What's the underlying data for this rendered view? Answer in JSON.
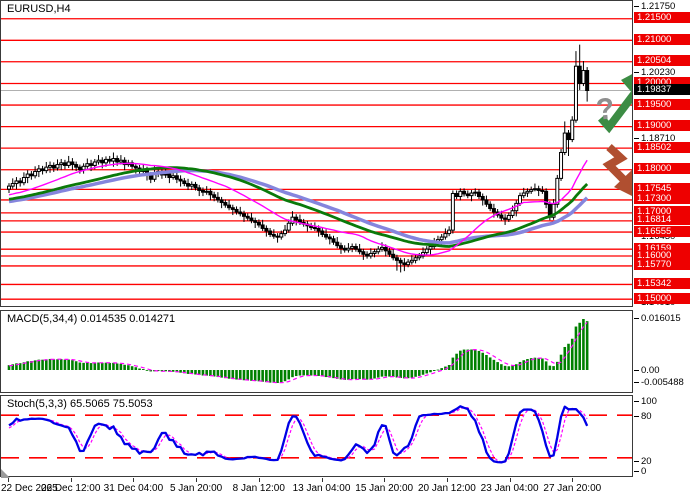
{
  "window": {
    "symbol_label": "EURUSD,H4"
  },
  "annotation": {
    "question_mark": "?"
  },
  "panels": {
    "macd": {
      "label": "MACD(5,34,4) 0.014535 0.014271",
      "scale_labels": [
        "0.016015",
        "0.00",
        "-0.005488"
      ]
    },
    "stoch": {
      "label": "Stoch(5,3,3) 65.5065 75.5053",
      "scale_labels": [
        "100",
        "80",
        "20",
        "0"
      ]
    }
  },
  "colors": {
    "level_line": "#ff0000",
    "badge_red": "#ee0000",
    "badge_black": "#000000",
    "current_price_line": "#b0b0b0",
    "candle_up_fill": "#ffffff",
    "candle_down_fill": "#000000",
    "candle_outline": "#000000",
    "ma_fast": "#ff00ff",
    "ma_mid": "#0a7a0a",
    "ma_slow": "#8585dd",
    "macd_bar": "#008000",
    "macd_signal": "#ff00ff",
    "stoch_k": "#0000e6",
    "stoch_d": "#ff00ff",
    "stoch_level_line": "#ff0000",
    "up_arrow": "#3c8c44",
    "down_arrow": "#b04f30",
    "question_mark": "#8f8f8f"
  },
  "chart_data": {
    "type": "candlestick",
    "symbol": "EURUSD",
    "timeframe": "H4",
    "current_price": 1.19837,
    "level_lines": [
      1.215,
      1.21,
      1.20504,
      1.2,
      1.195,
      1.19,
      1.18502,
      1.18,
      1.17545,
      1.173,
      1.17,
      1.16814,
      1.16555,
      1.16159,
      1.16,
      1.1577,
      1.15342,
      1.15
    ],
    "y_axis_visible_ticks": [
      1.2175,
      1.2023,
      1.1871,
      1.1643,
      1.1491
    ],
    "x_tick_labels": [
      "22 Dec 2025",
      "26 Dec 12:00",
      "31 Dec 04:00",
      "5 Jan 20:00",
      "8 Jan 12:00",
      "13 Jan 04:00",
      "15 Jan 20:00",
      "20 Jan 12:00",
      "23 Jan 04:00",
      "27 Jan 20:00"
    ],
    "macd_params": [
      5,
      34,
      4
    ],
    "macd_current": [
      0.014535,
      0.014271
    ],
    "macd_scale": {
      "max": 0.016015,
      "zero": 0.0,
      "min": -0.005488
    },
    "stoch_params": [
      5,
      3,
      3
    ],
    "stoch_current": [
      65.5065,
      75.5053
    ],
    "stoch_scale": {
      "max": 100,
      "upper": 80,
      "lower": 20,
      "min": 0
    },
    "ohlc": [
      [
        1.1755,
        1.1769,
        1.1746,
        1.1762
      ],
      [
        1.1762,
        1.178,
        1.1756,
        1.1768
      ],
      [
        1.1768,
        1.1783,
        1.1755,
        1.1774
      ],
      [
        1.1774,
        1.1781,
        1.1761,
        1.177
      ],
      [
        1.177,
        1.1794,
        1.1764,
        1.1782
      ],
      [
        1.1782,
        1.1799,
        1.1769,
        1.179
      ],
      [
        1.179,
        1.1797,
        1.1777,
        1.1786
      ],
      [
        1.1786,
        1.1808,
        1.178,
        1.1796
      ],
      [
        1.1796,
        1.1811,
        1.1783,
        1.1802
      ],
      [
        1.1802,
        1.1809,
        1.1789,
        1.1798
      ],
      [
        1.1798,
        1.1818,
        1.1792,
        1.1806
      ],
      [
        1.1806,
        1.1819,
        1.1793,
        1.181
      ],
      [
        1.181,
        1.1817,
        1.1795,
        1.1804
      ],
      [
        1.1804,
        1.1824,
        1.1798,
        1.1812
      ],
      [
        1.1812,
        1.1825,
        1.1799,
        1.1816
      ],
      [
        1.1816,
        1.1823,
        1.1801,
        1.181
      ],
      [
        1.181,
        1.1832,
        1.1804,
        1.1818
      ],
      [
        1.1818,
        1.1827,
        1.1799,
        1.1812
      ],
      [
        1.1812,
        1.1819,
        1.1797,
        1.1806
      ],
      [
        1.1806,
        1.1812,
        1.1791,
        1.18
      ],
      [
        1.18,
        1.1815,
        1.1791,
        1.1808
      ],
      [
        1.1808,
        1.1826,
        1.1802,
        1.1814
      ],
      [
        1.1814,
        1.1823,
        1.1797,
        1.181
      ],
      [
        1.181,
        1.1825,
        1.1801,
        1.1818
      ],
      [
        1.1818,
        1.1834,
        1.1812,
        1.1822
      ],
      [
        1.1822,
        1.1829,
        1.1803,
        1.1816
      ],
      [
        1.1816,
        1.1831,
        1.1807,
        1.1824
      ],
      [
        1.1824,
        1.1832,
        1.1814,
        1.182
      ],
      [
        1.182,
        1.184,
        1.1807,
        1.1826
      ],
      [
        1.1826,
        1.1833,
        1.1809,
        1.1818
      ],
      [
        1.1818,
        1.1834,
        1.1812,
        1.1822
      ],
      [
        1.1822,
        1.1829,
        1.1799,
        1.1812
      ],
      [
        1.1812,
        1.1823,
        1.1807,
        1.1816
      ],
      [
        1.1816,
        1.1822,
        1.1802,
        1.1808
      ],
      [
        1.1808,
        1.1813,
        1.1791,
        1.1804
      ],
      [
        1.1804,
        1.1811,
        1.1787,
        1.1796
      ],
      [
        1.1796,
        1.1812,
        1.179,
        1.18
      ],
      [
        1.18,
        1.1807,
        1.1775,
        1.1788
      ],
      [
        1.1788,
        1.1795,
        1.1769,
        1.1778
      ],
      [
        1.1778,
        1.1808,
        1.1772,
        1.1792
      ],
      [
        1.1792,
        1.1805,
        1.1783,
        1.1796
      ],
      [
        1.1796,
        1.1803,
        1.1779,
        1.1788
      ],
      [
        1.1788,
        1.1802,
        1.1781,
        1.179
      ],
      [
        1.179,
        1.1797,
        1.1769,
        1.1782
      ],
      [
        1.1782,
        1.1793,
        1.1777,
        1.1786
      ],
      [
        1.1786,
        1.1793,
        1.1769,
        1.1778
      ],
      [
        1.1778,
        1.1787,
        1.1761,
        1.1774
      ],
      [
        1.1774,
        1.1781,
        1.1762,
        1.1768
      ],
      [
        1.1768,
        1.1779,
        1.1753,
        1.1762
      ],
      [
        1.1762,
        1.1773,
        1.1753,
        1.1766
      ],
      [
        1.1766,
        1.1772,
        1.1752,
        1.1758
      ],
      [
        1.1758,
        1.1765,
        1.1739,
        1.1752
      ],
      [
        1.1752,
        1.1759,
        1.1739,
        1.1748
      ],
      [
        1.1748,
        1.1762,
        1.1742,
        1.175
      ],
      [
        1.175,
        1.1757,
        1.1729,
        1.1742
      ],
      [
        1.1742,
        1.1749,
        1.1727,
        1.1736
      ],
      [
        1.1736,
        1.1748,
        1.1724,
        1.173
      ],
      [
        1.173,
        1.1737,
        1.1711,
        1.1724
      ],
      [
        1.1724,
        1.1731,
        1.1712,
        1.1718
      ],
      [
        1.1718,
        1.173,
        1.1706,
        1.1712
      ],
      [
        1.1712,
        1.1719,
        1.1695,
        1.1708
      ],
      [
        1.1708,
        1.1715,
        1.1696,
        1.1702
      ],
      [
        1.1702,
        1.1714,
        1.1692,
        1.1698
      ],
      [
        1.1698,
        1.1705,
        1.1679,
        1.1692
      ],
      [
        1.1692,
        1.1699,
        1.1682,
        1.1688
      ],
      [
        1.1688,
        1.17,
        1.1676,
        1.1682
      ],
      [
        1.1682,
        1.1689,
        1.1665,
        1.1678
      ],
      [
        1.1678,
        1.1685,
        1.1666,
        1.1672
      ],
      [
        1.1672,
        1.1684,
        1.1658,
        1.1664
      ],
      [
        1.1664,
        1.1671,
        1.1645,
        1.1658
      ],
      [
        1.1658,
        1.1665,
        1.1644,
        1.165
      ],
      [
        1.165,
        1.1662,
        1.164,
        1.1646
      ],
      [
        1.1646,
        1.1653,
        1.1631,
        1.1644
      ],
      [
        1.1644,
        1.1659,
        1.1638,
        1.1652
      ],
      [
        1.1652,
        1.1672,
        1.1646,
        1.166
      ],
      [
        1.166,
        1.1685,
        1.1654,
        1.1676
      ],
      [
        1.1676,
        1.1704,
        1.167,
        1.169
      ],
      [
        1.169,
        1.1697,
        1.1671,
        1.1684
      ],
      [
        1.1684,
        1.1696,
        1.1672,
        1.1678
      ],
      [
        1.1678,
        1.1686,
        1.1668,
        1.1674
      ],
      [
        1.1674,
        1.1681,
        1.1657,
        1.167
      ],
      [
        1.167,
        1.1677,
        1.166,
        1.1666
      ],
      [
        1.1666,
        1.1678,
        1.1658,
        1.1664
      ],
      [
        1.1664,
        1.1671,
        1.1645,
        1.1658
      ],
      [
        1.1658,
        1.1665,
        1.1644,
        1.165
      ],
      [
        1.165,
        1.1662,
        1.1638,
        1.1644
      ],
      [
        1.1644,
        1.1651,
        1.1627,
        1.164
      ],
      [
        1.164,
        1.1647,
        1.1626,
        1.1632
      ],
      [
        1.1632,
        1.1644,
        1.1618,
        1.1624
      ],
      [
        1.1624,
        1.1631,
        1.1605,
        1.1618
      ],
      [
        1.1618,
        1.1625,
        1.1608,
        1.1614
      ],
      [
        1.1614,
        1.163,
        1.1608,
        1.1618
      ],
      [
        1.1618,
        1.1629,
        1.1609,
        1.1622
      ],
      [
        1.1622,
        1.1629,
        1.161,
        1.1616
      ],
      [
        1.1616,
        1.1628,
        1.1604,
        1.161
      ],
      [
        1.161,
        1.1617,
        1.1591,
        1.1604
      ],
      [
        1.1604,
        1.1611,
        1.1594,
        1.16
      ],
      [
        1.16,
        1.1618,
        1.1594,
        1.1606
      ],
      [
        1.1606,
        1.1617,
        1.1597,
        1.161
      ],
      [
        1.161,
        1.1623,
        1.1604,
        1.1616
      ],
      [
        1.1616,
        1.1632,
        1.161,
        1.162
      ],
      [
        1.162,
        1.1627,
        1.1599,
        1.1612
      ],
      [
        1.1612,
        1.1619,
        1.1598,
        1.1604
      ],
      [
        1.1604,
        1.1616,
        1.159,
        1.1596
      ],
      [
        1.1596,
        1.1603,
        1.1566,
        1.159
      ],
      [
        1.159,
        1.1596,
        1.1562,
        1.1584
      ],
      [
        1.1584,
        1.1595,
        1.1565,
        1.158
      ],
      [
        1.158,
        1.1593,
        1.1574,
        1.1586
      ],
      [
        1.1586,
        1.1602,
        1.158,
        1.159
      ],
      [
        1.159,
        1.1603,
        1.1583,
        1.1596
      ],
      [
        1.1596,
        1.1607,
        1.159,
        1.16
      ],
      [
        1.16,
        1.162,
        1.1594,
        1.1608
      ],
      [
        1.1608,
        1.1623,
        1.1602,
        1.1616
      ],
      [
        1.1616,
        1.1629,
        1.1603,
        1.1622
      ],
      [
        1.1622,
        1.1642,
        1.1616,
        1.163
      ],
      [
        1.163,
        1.1647,
        1.1622,
        1.1638
      ],
      [
        1.1638,
        1.1651,
        1.1625,
        1.1644
      ],
      [
        1.1644,
        1.1664,
        1.1638,
        1.1652
      ],
      [
        1.1652,
        1.1669,
        1.1646,
        1.166
      ],
      [
        1.166,
        1.1752,
        1.1652,
        1.1745
      ],
      [
        1.1745,
        1.1752,
        1.1732,
        1.1738
      ],
      [
        1.1738,
        1.1757,
        1.1729,
        1.175
      ],
      [
        1.175,
        1.1757,
        1.1738,
        1.1744
      ],
      [
        1.1744,
        1.1752,
        1.1734,
        1.174
      ],
      [
        1.174,
        1.1753,
        1.1727,
        1.1746
      ],
      [
        1.1746,
        1.1757,
        1.1739,
        1.1748
      ],
      [
        1.1748,
        1.1755,
        1.1732,
        1.1738
      ],
      [
        1.1738,
        1.1745,
        1.1717,
        1.173
      ],
      [
        1.173,
        1.174,
        1.1714,
        1.172
      ],
      [
        1.172,
        1.1727,
        1.1704,
        1.171
      ],
      [
        1.171,
        1.1721,
        1.1689,
        1.1702
      ],
      [
        1.1702,
        1.1709,
        1.1689,
        1.1695
      ],
      [
        1.1695,
        1.1705,
        1.1682,
        1.1688
      ],
      [
        1.1688,
        1.1697,
        1.1672,
        1.1685
      ],
      [
        1.1685,
        1.1701,
        1.1679,
        1.1694
      ],
      [
        1.1694,
        1.1717,
        1.1688,
        1.1705
      ],
      [
        1.1705,
        1.1729,
        1.1692,
        1.1722
      ],
      [
        1.1722,
        1.1747,
        1.1716,
        1.174
      ],
      [
        1.174,
        1.1758,
        1.1734,
        1.1746
      ],
      [
        1.1746,
        1.1757,
        1.1737,
        1.175
      ],
      [
        1.175,
        1.1761,
        1.1744,
        1.1754
      ],
      [
        1.1754,
        1.1768,
        1.175,
        1.1756
      ],
      [
        1.1756,
        1.1763,
        1.1739,
        1.1752
      ],
      [
        1.1752,
        1.1762,
        1.1744,
        1.175
      ],
      [
        1.175,
        1.1757,
        1.1711,
        1.172
      ],
      [
        1.172,
        1.1727,
        1.1683,
        1.169
      ],
      [
        1.169,
        1.1732,
        1.1684,
        1.172
      ],
      [
        1.172,
        1.1788,
        1.1712,
        1.178
      ],
      [
        1.178,
        1.1848,
        1.1774,
        1.184
      ],
      [
        1.184,
        1.1912,
        1.1834,
        1.1885
      ],
      [
        1.1885,
        1.1892,
        1.1832,
        1.187
      ],
      [
        1.187,
        1.1924,
        1.1864,
        1.1915
      ],
      [
        1.1915,
        1.2075,
        1.1909,
        1.204
      ],
      [
        1.204,
        1.209,
        1.1985,
        1.2
      ],
      [
        1.2,
        1.2052,
        1.1994,
        1.203
      ],
      [
        1.203,
        1.2038,
        1.1958,
        1.19837
      ]
    ]
  }
}
